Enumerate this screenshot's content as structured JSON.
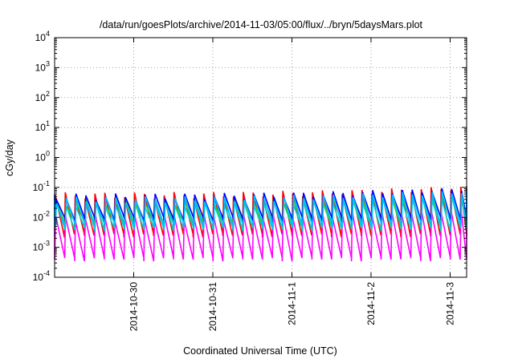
{
  "chart_data": {
    "type": "line",
    "title": "/data/run/goesPlots/archive/2014-11-03/05:00/flux/../bryn/5daysMars.plot",
    "xlabel": "Coordinated Universal Time (UTC)",
    "ylabel": "cGy/day",
    "yscale": "log",
    "ylim": [
      0.0001,
      10000
    ],
    "xlim": [
      "2014-10-29 00:00",
      "2014-11-03 05:00"
    ],
    "x_ticks": [
      "2014-10-30",
      "2014-10-31",
      "2014-11-1",
      "2014-11-2",
      "2014-11-3"
    ],
    "y_ticks": [
      {
        "base": "10",
        "exp": "-4",
        "value": 0.0001
      },
      {
        "base": "10",
        "exp": "-3",
        "value": 0.001
      },
      {
        "base": "10",
        "exp": "-2",
        "value": 0.01
      },
      {
        "base": "10",
        "exp": "-1",
        "value": 0.1
      },
      {
        "base": "10",
        "exp": "0",
        "value": 1
      },
      {
        "base": "10",
        "exp": "1",
        "value": 10
      },
      {
        "base": "10",
        "exp": "2",
        "value": 100
      },
      {
        "base": "10",
        "exp": "3",
        "value": 1000
      },
      {
        "base": "10",
        "exp": "4",
        "value": 10000
      }
    ],
    "grid": true,
    "legend": "none",
    "cycle_hours": 3,
    "series": [
      {
        "color": "#ff0000",
        "peak": 0.055,
        "trough": 0.0025
      },
      {
        "color": "#ff00ff",
        "peak": 0.01,
        "trough": 0.0004
      },
      {
        "color": "#00ced1",
        "peak": 0.03,
        "trough": 0.004
      },
      {
        "color": "#32cd32",
        "peak": 0.035,
        "trough": 0.006
      },
      {
        "color": "#0000ff",
        "peak": 0.05,
        "trough": 0.008
      },
      {
        "color": "#00bfff",
        "peak": 0.04,
        "trough": 0.005
      }
    ]
  }
}
